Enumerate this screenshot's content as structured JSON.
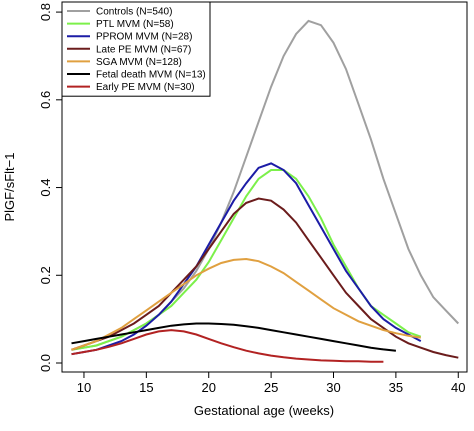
{
  "chart_data": {
    "type": "line",
    "xlabel": "Gestational age (weeks)",
    "ylabel": "PlGF/sFlt−1",
    "xlim": [
      8.24,
      40.7
    ],
    "ylim": [
      -0.0205,
      0.823
    ],
    "xticks": [
      10,
      15,
      20,
      25,
      30,
      35,
      40
    ],
    "yticks": [
      {
        "value": 0,
        "label": "0.0"
      },
      0.2,
      0.4,
      0.6,
      0.8
    ],
    "legend": "upper left",
    "x": [
      9,
      10,
      11,
      12,
      13,
      14,
      15,
      16,
      17,
      18,
      19,
      20,
      21,
      22,
      23,
      24,
      25,
      26,
      27,
      28,
      29,
      30,
      31,
      32,
      33,
      34,
      35,
      36,
      37,
      38,
      39,
      40
    ],
    "series": [
      {
        "name": "Controls (N=540)",
        "color": "#a0a0a0",
        "values": [
          0.03,
          0.035,
          0.04,
          0.05,
          0.06,
          0.075,
          0.09,
          0.11,
          0.14,
          0.17,
          0.21,
          0.26,
          0.32,
          0.39,
          0.47,
          0.55,
          0.63,
          0.7,
          0.75,
          0.78,
          0.77,
          0.73,
          0.67,
          0.59,
          0.51,
          0.42,
          0.34,
          0.26,
          0.2,
          0.15,
          0.12,
          0.09
        ]
      },
      {
        "name": "PTL MVM (N=58)",
        "color": "#7cf04a",
        "values": [
          0.03,
          0.035,
          0.04,
          0.05,
          0.06,
          0.075,
          0.09,
          0.11,
          0.13,
          0.16,
          0.19,
          0.23,
          0.28,
          0.33,
          0.38,
          0.42,
          0.44,
          0.44,
          0.42,
          0.38,
          0.33,
          0.27,
          0.22,
          0.17,
          0.13,
          0.11,
          0.09,
          0.07,
          0.06,
          null,
          null,
          null
        ]
      },
      {
        "name": "PPROM MVM (N=28)",
        "color": "#1c1ca6",
        "values": [
          0.02,
          0.025,
          0.03,
          0.04,
          0.05,
          0.065,
          0.085,
          0.11,
          0.14,
          0.18,
          0.22,
          0.27,
          0.32,
          0.37,
          0.41,
          0.445,
          0.455,
          0.44,
          0.41,
          0.36,
          0.31,
          0.26,
          0.21,
          0.17,
          0.13,
          0.1,
          0.08,
          0.065,
          0.05,
          null,
          null,
          null
        ]
      },
      {
        "name": "Late PE MVM (N=67)",
        "color": "#6b1c1c",
        "values": [
          0.03,
          0.04,
          0.05,
          0.06,
          0.075,
          0.09,
          0.11,
          0.13,
          0.16,
          0.19,
          0.22,
          0.26,
          0.3,
          0.34,
          0.365,
          0.375,
          0.37,
          0.35,
          0.32,
          0.28,
          0.24,
          0.2,
          0.16,
          0.13,
          0.1,
          0.08,
          0.06,
          0.045,
          0.035,
          0.025,
          0.018,
          0.012
        ]
      },
      {
        "name": "SGA MVM (N=128)",
        "color": "#e0a040",
        "values": [
          0.03,
          0.04,
          0.05,
          0.065,
          0.08,
          0.1,
          0.12,
          0.14,
          0.16,
          0.18,
          0.2,
          0.215,
          0.228,
          0.235,
          0.237,
          0.232,
          0.22,
          0.205,
          0.185,
          0.165,
          0.145,
          0.125,
          0.11,
          0.095,
          0.085,
          0.075,
          0.068,
          0.062,
          0.058,
          null,
          null,
          null
        ]
      },
      {
        "name": "Fetal death MVM (N=13)",
        "color": "#000000",
        "values": [
          0.045,
          0.05,
          0.055,
          0.06,
          0.065,
          0.07,
          0.075,
          0.08,
          0.085,
          0.088,
          0.09,
          0.09,
          0.089,
          0.087,
          0.084,
          0.08,
          0.075,
          0.07,
          0.065,
          0.06,
          0.055,
          0.05,
          0.045,
          0.04,
          0.035,
          0.031,
          0.028,
          null,
          null,
          null,
          null,
          null
        ]
      },
      {
        "name": "Early PE MVM (N=30)",
        "color": "#b22222",
        "values": [
          0.02,
          0.025,
          0.03,
          0.037,
          0.045,
          0.055,
          0.065,
          0.072,
          0.075,
          0.072,
          0.065,
          0.055,
          0.045,
          0.036,
          0.028,
          0.022,
          0.017,
          0.013,
          0.01,
          0.008,
          0.006,
          0.005,
          0.004,
          0.004,
          0.003,
          0.003,
          null,
          null,
          null,
          null,
          null,
          null
        ]
      }
    ]
  }
}
